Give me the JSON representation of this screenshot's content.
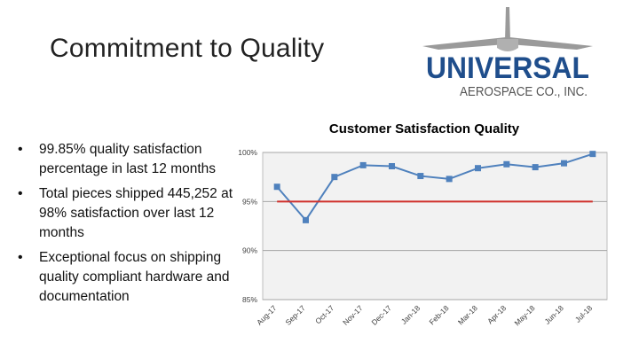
{
  "slide": {
    "title": "Commitment to Quality"
  },
  "logo": {
    "name": "UNIVERSAL",
    "subtitle": "AEROSPACE CO., INC.",
    "color": "#1f4e8c",
    "wing_color": "#9a9a9a"
  },
  "bullets": [
    "99.85% quality satisfaction percentage in last 12 months",
    "Total pieces shipped 445,252 at 98% satisfaction over last 12 months",
    "Exceptional focus on shipping quality compliant hardware and documentation"
  ],
  "chart_data": {
    "type": "line",
    "title": "Customer Satisfaction Quality",
    "categories": [
      "Aug-17",
      "Sep-17",
      "Oct-17",
      "Nov-17",
      "Dec-17",
      "Jan-18",
      "Feb-18",
      "Mar-18",
      "Apr-18",
      "May-18",
      "Jun-18",
      "Jul-18"
    ],
    "series": [
      {
        "values": [
          96.5,
          93.1,
          97.5,
          98.7,
          98.6,
          97.6,
          97.3,
          98.4,
          98.8,
          98.5,
          98.9,
          99.85
        ],
        "color": "#4f81bd",
        "marker": "square"
      },
      {
        "values": [
          95,
          95,
          95,
          95,
          95,
          95,
          95,
          95,
          95,
          95,
          95,
          95
        ],
        "color": "#d0312d",
        "marker": "none"
      }
    ],
    "yticks": [
      "100%",
      "95%",
      "90%",
      "85%"
    ],
    "ylim": [
      85,
      100
    ],
    "grid": true,
    "plot_background": "#f2f2f2"
  }
}
